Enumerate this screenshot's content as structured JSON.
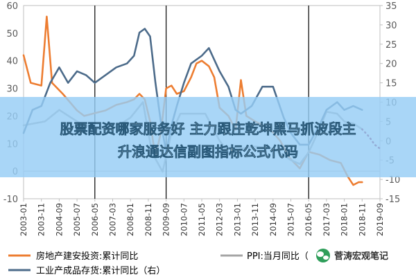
{
  "chart_data": {
    "type": "line",
    "left_axis": {
      "ylim": [
        -10,
        60
      ],
      "ticks": [
        "60",
        "50",
        "40",
        "30",
        "20",
        "10",
        "0",
        "-10"
      ]
    },
    "right_axis": {
      "ylim": [
        -15,
        35
      ],
      "ticks": [
        "35",
        "30",
        "25",
        "20",
        "15",
        "10",
        "5",
        "0",
        "-5",
        "-10",
        "-15"
      ]
    },
    "x_tick_labels": [
      "2003-01",
      "2003-11",
      "2004-09",
      "2005-07",
      "2006-05",
      "2007-03",
      "2008-01",
      "2008-11",
      "2009-09",
      "2010-07",
      "2011-05",
      "2012-03",
      "2013-01",
      "2013-11",
      "2014-09",
      "2015-07",
      "2016-05",
      "2017-03",
      "2018-01",
      "2018-11",
      "2019-09"
    ],
    "vertical_lines": [
      "2006-05",
      "2009-09",
      "2016-05"
    ],
    "series": [
      {
        "name": "房地产建安投资:累计同比",
        "color": "#ed7d31",
        "axis": "left",
        "style": "solid",
        "points": [
          [
            "2003-01",
            42
          ],
          [
            "2003-05",
            32
          ],
          [
            "2003-11",
            31
          ],
          [
            "2004-02",
            56
          ],
          [
            "2004-05",
            32
          ],
          [
            "2004-11",
            28
          ],
          [
            "2005-03",
            25
          ],
          [
            "2005-07",
            22
          ],
          [
            "2005-11",
            20
          ],
          [
            "2006-05",
            21
          ],
          [
            "2006-11",
            22
          ],
          [
            "2007-05",
            24
          ],
          [
            "2007-11",
            25
          ],
          [
            "2008-03",
            26
          ],
          [
            "2008-06",
            28
          ],
          [
            "2008-09",
            26
          ],
          [
            "2008-12",
            18
          ],
          [
            "2009-03",
            5
          ],
          [
            "2009-06",
            14
          ],
          [
            "2009-09",
            30
          ],
          [
            "2009-12",
            31
          ],
          [
            "2010-03",
            28
          ],
          [
            "2010-07",
            29
          ],
          [
            "2010-11",
            34
          ],
          [
            "2011-02",
            39
          ],
          [
            "2011-05",
            40
          ],
          [
            "2011-09",
            38
          ],
          [
            "2011-12",
            34
          ],
          [
            "2012-03",
            23
          ],
          [
            "2012-08",
            20
          ],
          [
            "2012-12",
            15
          ],
          [
            "2013-03",
            33
          ],
          [
            "2013-06",
            20
          ],
          [
            "2013-11",
            18
          ],
          [
            "2014-05",
            16
          ],
          [
            "2014-09",
            14
          ],
          [
            "2015-01",
            11
          ],
          [
            "2015-06",
            5
          ],
          [
            "2015-12",
            1
          ],
          [
            "2016-05",
            7
          ],
          [
            "2016-11",
            6
          ],
          [
            "2017-05",
            4
          ],
          [
            "2017-11",
            3
          ],
          [
            "2018-03",
            -2
          ],
          [
            "2018-06",
            -5
          ],
          [
            "2018-09",
            -4
          ],
          [
            "2018-11",
            -4
          ]
        ]
      },
      {
        "name": "PPI:当月同比",
        "color": "#a5a5a5",
        "axis": "right",
        "style": "solid",
        "points": [
          [
            "2003-01",
            4
          ],
          [
            "2004-01",
            5
          ],
          [
            "2004-09",
            8
          ],
          [
            "2005-07",
            5
          ],
          [
            "2006-05",
            3
          ],
          [
            "2007-03",
            3
          ],
          [
            "2008-01",
            6
          ],
          [
            "2008-08",
            10
          ],
          [
            "2009-01",
            -3
          ],
          [
            "2009-07",
            -8
          ],
          [
            "2009-12",
            2
          ],
          [
            "2010-05",
            7
          ],
          [
            "2011-07",
            7
          ],
          [
            "2012-03",
            0
          ],
          [
            "2012-09",
            -3.5
          ],
          [
            "2013-03",
            -2
          ],
          [
            "2013-11",
            -1.5
          ],
          [
            "2014-09",
            -2
          ],
          [
            "2015-07",
            -5
          ],
          [
            "2015-12",
            -6
          ],
          [
            "2016-05",
            -3
          ],
          [
            "2016-11",
            3
          ],
          [
            "2017-03",
            7.5
          ],
          [
            "2017-09",
            7
          ],
          [
            "2018-01",
            5
          ],
          [
            "2018-06",
            4.5
          ],
          [
            "2018-11",
            3
          ]
        ]
      },
      {
        "name": "PPI:当月同比(预测)",
        "color": "#8b1a4b",
        "axis": "right",
        "style": "dotted",
        "points": [
          [
            "2018-11",
            3
          ],
          [
            "2019-03",
            1
          ],
          [
            "2019-06",
            -1
          ],
          [
            "2019-09",
            -2
          ]
        ]
      },
      {
        "name": "工业产成品存货:累计同比（右）",
        "color": "#4c6b8a",
        "axis": "right",
        "style": "solid",
        "points": [
          [
            "2003-01",
            2
          ],
          [
            "2003-06",
            8
          ],
          [
            "2003-11",
            9
          ],
          [
            "2004-04",
            15
          ],
          [
            "2004-09",
            19
          ],
          [
            "2005-02",
            15
          ],
          [
            "2005-07",
            18
          ],
          [
            "2005-12",
            17
          ],
          [
            "2006-05",
            15
          ],
          [
            "2006-11",
            17
          ],
          [
            "2007-05",
            19
          ],
          [
            "2007-11",
            20
          ],
          [
            "2008-03",
            22
          ],
          [
            "2008-06",
            28
          ],
          [
            "2008-09",
            29
          ],
          [
            "2008-12",
            27
          ],
          [
            "2009-03",
            15
          ],
          [
            "2009-06",
            5
          ],
          [
            "2009-09",
            -3
          ],
          [
            "2009-12",
            4
          ],
          [
            "2010-03",
            9
          ],
          [
            "2010-07",
            15
          ],
          [
            "2010-11",
            20
          ],
          [
            "2011-05",
            22
          ],
          [
            "2011-09",
            24
          ],
          [
            "2012-03",
            18
          ],
          [
            "2012-08",
            14
          ],
          [
            "2012-12",
            8
          ],
          [
            "2013-03",
            7
          ],
          [
            "2013-09",
            9
          ],
          [
            "2014-03",
            14
          ],
          [
            "2014-09",
            14
          ],
          [
            "2015-03",
            6
          ],
          [
            "2015-07",
            2
          ],
          [
            "2015-12",
            -1
          ],
          [
            "2016-05",
            -1
          ],
          [
            "2016-11",
            4
          ],
          [
            "2017-03",
            8
          ],
          [
            "2017-09",
            10
          ],
          [
            "2018-01",
            8
          ],
          [
            "2018-06",
            9
          ],
          [
            "2018-11",
            8
          ]
        ]
      }
    ],
    "legend": {
      "placement": "bottom"
    }
  },
  "banner": {
    "line1": "股票配资哪家服务好 主力跟庄乾坤黑马抓波段主",
    "line2": "升浪通达信副图指标公式代码"
  },
  "legend": {
    "item1": "房地产建安投资:累计同比",
    "item2": "PPI:当月同比（",
    "item3": "工业产成品存货:累计同比（右）"
  },
  "watermark": {
    "text": "菅涛宏观笔记"
  }
}
